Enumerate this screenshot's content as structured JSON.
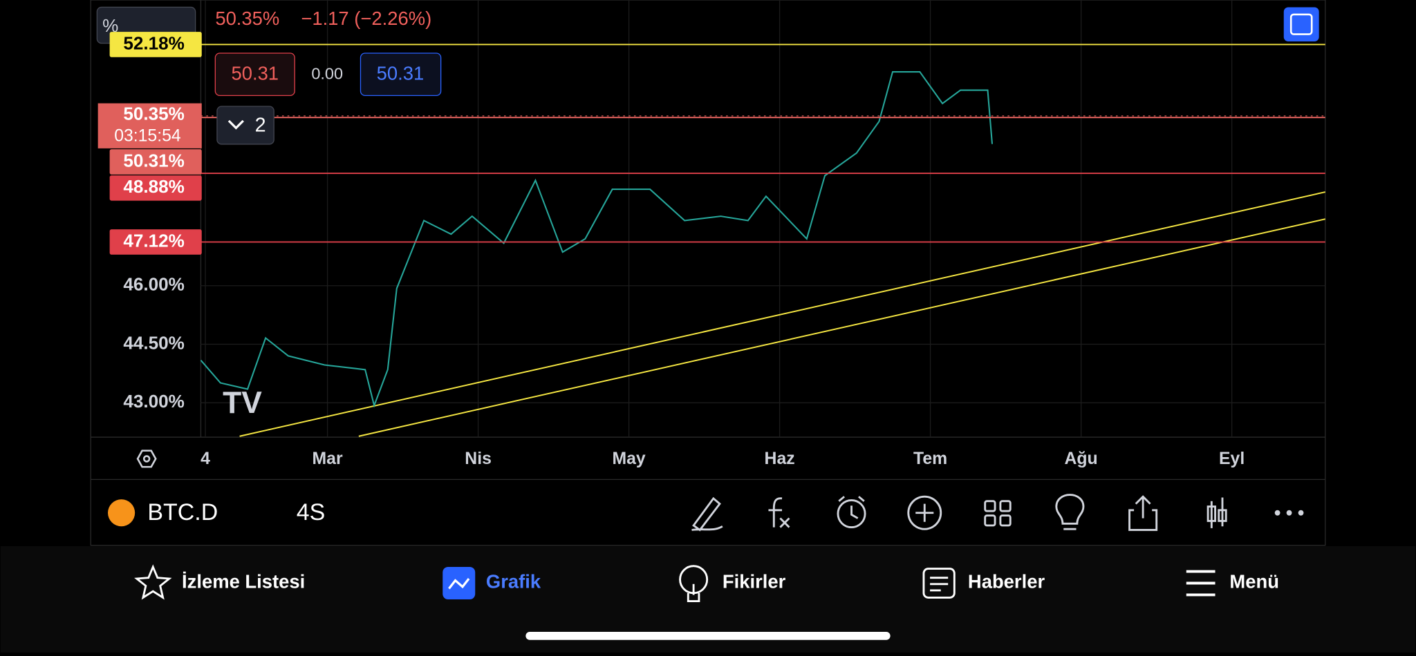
{
  "header": {
    "unit_button": "%",
    "last": "50.35%",
    "change": "−1.17 (−2.26%)"
  },
  "order": {
    "sell": "50.31",
    "spread": "0.00",
    "buy": "50.31"
  },
  "badge": "2",
  "price_tag": {
    "price": "50.35%",
    "countdown": "03:15:54"
  },
  "chart_data": {
    "type": "line",
    "color": "#26a69a",
    "x": [
      0.16,
      0.29,
      0.47,
      0.59,
      0.74,
      0.98,
      1.25,
      1.31,
      1.4,
      1.46,
      1.64,
      1.82,
      1.96,
      2.17,
      2.38,
      2.56,
      2.71,
      2.89,
      3.14,
      3.37,
      3.61,
      3.79,
      3.91,
      4.18,
      4.3,
      4.51,
      4.66,
      4.75,
      4.93,
      5.08,
      5.2,
      5.38,
      5.41
    ],
    "values": [
      44.09,
      43.51,
      43.35,
      44.66,
      44.2,
      43.97,
      43.85,
      42.93,
      43.85,
      45.93,
      47.67,
      47.32,
      47.78,
      47.09,
      48.7,
      46.86,
      47.2,
      48.47,
      48.47,
      47.67,
      47.78,
      47.67,
      48.29,
      47.2,
      48.82,
      49.4,
      50.21,
      51.48,
      51.48,
      50.67,
      51.01,
      51.01,
      49.63
    ],
    "xlim": [
      0.16,
      7.62
    ],
    "ylim": [
      42.12,
      53.32
    ],
    "xticks": [
      {
        "value": 0.19,
        "label": "4"
      },
      {
        "value": 1,
        "label": "Mar"
      },
      {
        "value": 2,
        "label": "Nis"
      },
      {
        "value": 3,
        "label": "May"
      },
      {
        "value": 4,
        "label": "Haz"
      },
      {
        "value": 5,
        "label": "Tem"
      },
      {
        "value": 6,
        "label": "Ağu"
      },
      {
        "value": 7,
        "label": "Eyl"
      }
    ],
    "yticks": [
      {
        "value": 43,
        "label": "43.00%"
      },
      {
        "value": 44.5,
        "label": "44.50%"
      },
      {
        "value": 46,
        "label": "46.00%"
      }
    ],
    "grid": true,
    "current": {
      "value": 50.35,
      "color": "#e0605c"
    },
    "levels": [
      {
        "value": 52.18,
        "label": "52.18%",
        "color": "#f5e642"
      },
      {
        "value": 50.31,
        "label": "50.31%",
        "color": "#e0605c"
      },
      {
        "value": 48.88,
        "label": "48.88%",
        "color": "#e0404a"
      },
      {
        "value": 47.12,
        "label": "47.12%",
        "color": "#e0404a"
      }
    ]
  },
  "toolbar": {
    "symbol": "BTC.D",
    "interval": "4S"
  },
  "tabs": [
    "İzleme Listesi",
    "Grafik",
    "Fikirler",
    "Haberler",
    "Menü"
  ]
}
